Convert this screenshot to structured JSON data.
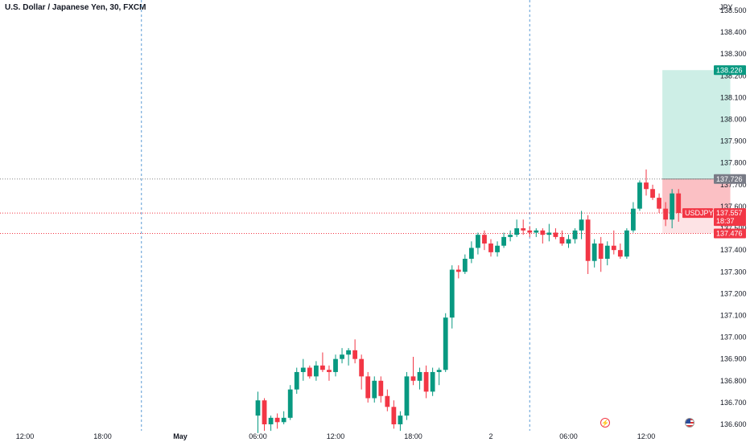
{
  "header": {
    "title": "U.S. Dollar / Japanese Yen, 30, FXCM",
    "currency": "JPY"
  },
  "colors": {
    "up": "#089981",
    "down": "#f23645",
    "grid_line": "#5b9bd5",
    "profit_zone": "#cdeee6",
    "loss_zone": "#fbc0c4",
    "loss_zone_light": "#fde3e5",
    "tag_gray": "#787b86"
  },
  "price_tags": {
    "target": "138.226",
    "entry": "137.726",
    "symbol": "USDJPY",
    "current": "137.557",
    "countdown": "18:37",
    "stop": "137.476"
  },
  "icons": [
    "flash-icon",
    "us-flag-icon"
  ],
  "chart_data": {
    "type": "candlestick",
    "ylim": [
      136.6,
      138.5
    ],
    "y_ticks": [
      "136.600",
      "136.700",
      "136.800",
      "136.900",
      "137.000",
      "137.100",
      "137.200",
      "137.300",
      "137.400",
      "137.500",
      "137.600",
      "137.700",
      "137.800",
      "137.900",
      "138.000",
      "138.100",
      "138.200",
      "138.300",
      "138.400",
      "138.500"
    ],
    "x_ticks": [
      {
        "label": "12:00",
        "bold": false
      },
      {
        "label": "18:00",
        "bold": false
      },
      {
        "label": "May",
        "bold": true
      },
      {
        "label": "06:00",
        "bold": false
      },
      {
        "label": "12:00",
        "bold": false
      },
      {
        "label": "18:00",
        "bold": false
      },
      {
        "label": "2",
        "bold": false
      },
      {
        "label": "06:00",
        "bold": false
      },
      {
        "label": "12:00",
        "bold": false
      }
    ],
    "session_breaks": [
      1.5,
      6.5
    ],
    "bars_per_tick": 12,
    "first_bar_slot": 36,
    "candles": [
      [
        136.64,
        136.75,
        136.56,
        136.71
      ],
      [
        136.71,
        136.72,
        136.57,
        136.6
      ],
      [
        136.6,
        136.64,
        136.57,
        136.63
      ],
      [
        136.63,
        136.65,
        136.58,
        136.61
      ],
      [
        136.61,
        136.66,
        136.6,
        136.63
      ],
      [
        136.63,
        136.78,
        136.62,
        136.76
      ],
      [
        136.76,
        136.86,
        136.74,
        136.84
      ],
      [
        136.84,
        136.9,
        136.8,
        136.86
      ],
      [
        136.86,
        136.87,
        136.81,
        136.82
      ],
      [
        136.82,
        136.89,
        136.8,
        136.87
      ],
      [
        136.87,
        136.93,
        136.84,
        136.85
      ],
      [
        136.85,
        136.87,
        136.8,
        136.84
      ],
      [
        136.84,
        136.92,
        136.82,
        136.9
      ],
      [
        136.9,
        136.95,
        136.88,
        136.92
      ],
      [
        136.92,
        136.95,
        136.87,
        136.94
      ],
      [
        136.94,
        136.99,
        136.88,
        136.9
      ],
      [
        136.9,
        136.92,
        136.76,
        136.82
      ],
      [
        136.82,
        136.84,
        136.7,
        136.72
      ],
      [
        136.72,
        136.82,
        136.7,
        136.8
      ],
      [
        136.8,
        136.82,
        136.7,
        136.73
      ],
      [
        136.73,
        136.76,
        136.66,
        136.68
      ],
      [
        136.68,
        136.71,
        136.58,
        136.6
      ],
      [
        136.6,
        136.66,
        136.57,
        136.64
      ],
      [
        136.64,
        136.84,
        136.62,
        136.82
      ],
      [
        136.82,
        136.91,
        136.78,
        136.8
      ],
      [
        136.8,
        136.86,
        136.76,
        136.84
      ],
      [
        136.84,
        136.87,
        136.72,
        136.75
      ],
      [
        136.75,
        136.86,
        136.73,
        136.84
      ],
      [
        136.84,
        136.86,
        136.78,
        136.85
      ],
      [
        136.85,
        137.11,
        136.84,
        137.09
      ],
      [
        137.09,
        137.33,
        137.04,
        137.31
      ],
      [
        137.31,
        137.33,
        137.27,
        137.3
      ],
      [
        137.3,
        137.38,
        137.29,
        137.36
      ],
      [
        137.36,
        137.44,
        137.34,
        137.41
      ],
      [
        137.41,
        137.48,
        137.38,
        137.47
      ],
      [
        137.47,
        137.49,
        137.4,
        137.43
      ],
      [
        137.43,
        137.45,
        137.37,
        137.39
      ],
      [
        137.39,
        137.44,
        137.37,
        137.42
      ],
      [
        137.42,
        137.48,
        137.41,
        137.46
      ],
      [
        137.46,
        137.49,
        137.44,
        137.47
      ],
      [
        137.47,
        137.54,
        137.46,
        137.5
      ],
      [
        137.5,
        137.54,
        137.47,
        137.49
      ],
      [
        137.49,
        137.51,
        137.46,
        137.48
      ],
      [
        137.48,
        137.5,
        137.46,
        137.49
      ],
      [
        137.49,
        137.5,
        137.43,
        137.47
      ],
      [
        137.47,
        137.52,
        137.44,
        137.48
      ],
      [
        137.48,
        137.5,
        137.45,
        137.46
      ],
      [
        137.46,
        137.49,
        137.42,
        137.43
      ],
      [
        137.43,
        137.47,
        137.41,
        137.45
      ],
      [
        137.45,
        137.5,
        137.43,
        137.49
      ],
      [
        137.49,
        137.58,
        137.45,
        137.54
      ],
      [
        137.54,
        137.56,
        137.29,
        137.35
      ],
      [
        137.35,
        137.45,
        137.32,
        137.43
      ],
      [
        137.43,
        137.46,
        137.3,
        137.36
      ],
      [
        137.36,
        137.44,
        137.33,
        137.42
      ],
      [
        137.42,
        137.49,
        137.38,
        137.4
      ],
      [
        137.4,
        137.43,
        137.36,
        137.37
      ],
      [
        137.37,
        137.5,
        137.36,
        137.49
      ],
      [
        137.49,
        137.62,
        137.48,
        137.59
      ],
      [
        137.59,
        137.72,
        137.58,
        137.71
      ],
      [
        137.71,
        137.77,
        137.65,
        137.68
      ],
      [
        137.68,
        137.7,
        137.63,
        137.64
      ],
      [
        137.64,
        137.66,
        137.57,
        137.59
      ],
      [
        137.59,
        137.62,
        137.51,
        137.54
      ],
      [
        137.54,
        137.68,
        137.5,
        137.66
      ],
      [
        137.66,
        137.68,
        137.53,
        137.57
      ]
    ],
    "position": {
      "bar_start": 63,
      "bar_end": 73,
      "target": 138.226,
      "entry": 137.726,
      "stop": 137.476
    }
  }
}
